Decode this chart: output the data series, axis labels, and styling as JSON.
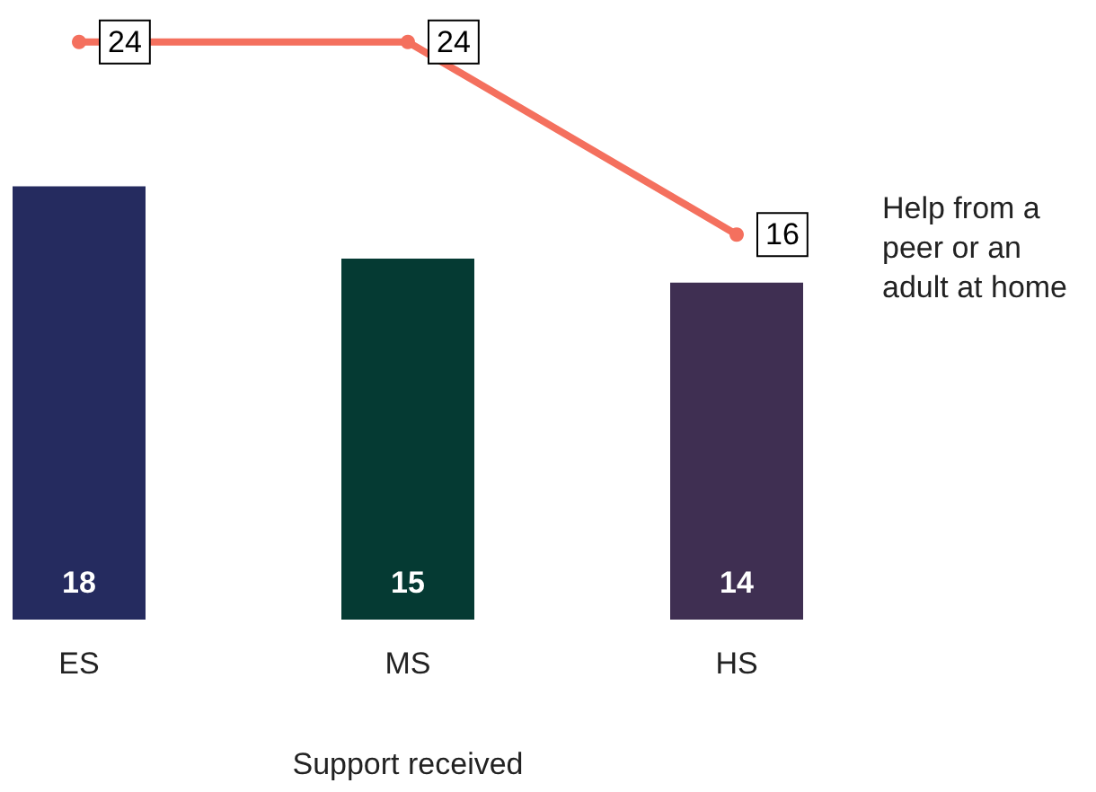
{
  "chart_data": {
    "type": "bar",
    "xlabel": "Support received",
    "categories": [
      "ES",
      "MS",
      "HS"
    ],
    "series": [
      {
        "colors": [
          "#252b5f",
          "#053a33",
          "#3f2f52"
        ],
        "values": [
          18,
          15,
          14
        ]
      },
      {
        "type": "line",
        "name": "Help from a peer or an adult at home",
        "color": "#f4705e",
        "values": [
          24,
          24,
          16
        ]
      }
    ],
    "data_labels": true,
    "legend": "right",
    "marker": "circle",
    "grid": false
  }
}
